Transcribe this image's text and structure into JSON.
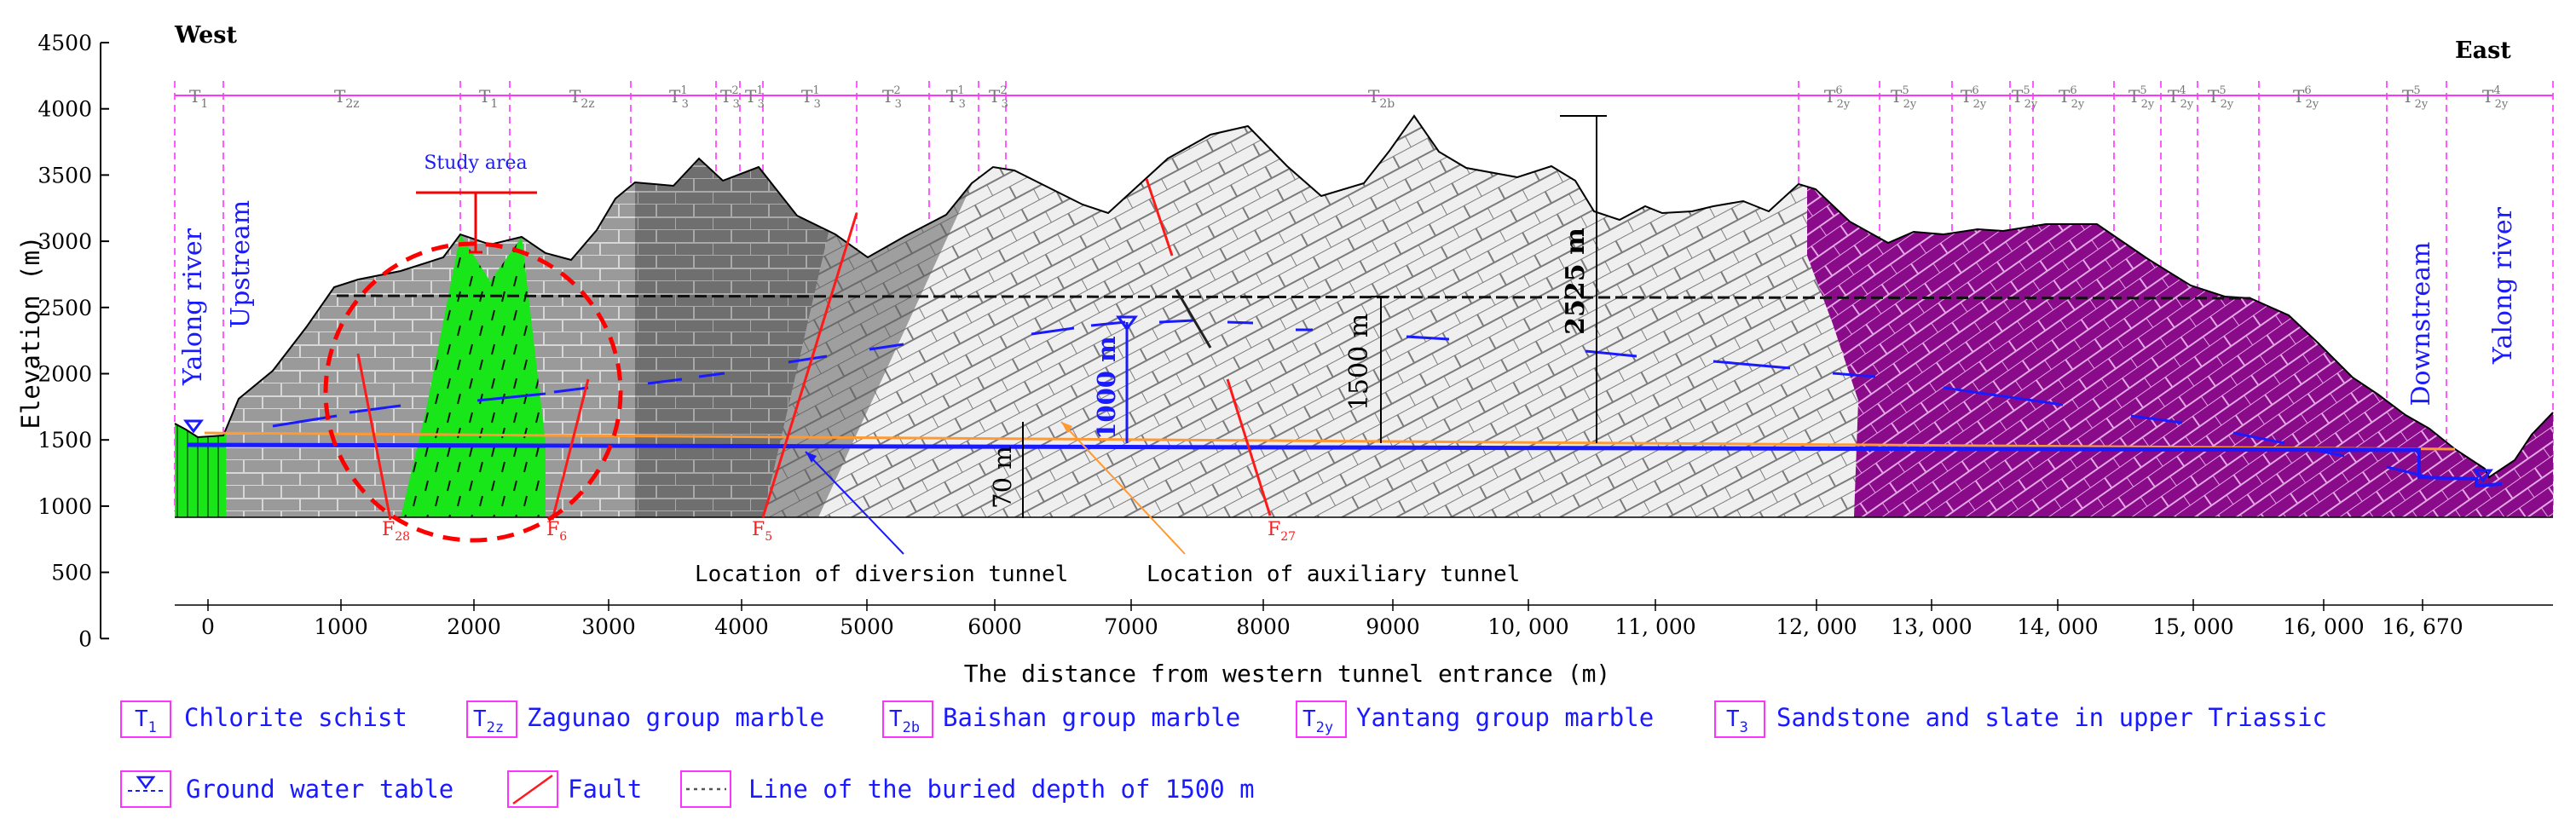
{
  "headings": {
    "west": "West",
    "east": "East"
  },
  "y_axis": {
    "label": "Elevation (m)",
    "ticks": [
      "4500",
      "4000",
      "3500",
      "3000",
      "2500",
      "2000",
      "1500",
      "1000",
      "500",
      "0"
    ]
  },
  "x_axis": {
    "label": "The distance from western tunnel entrance (m)",
    "ticks": [
      "0",
      "1000",
      "2000",
      "3000",
      "4000",
      "5000",
      "6000",
      "7000",
      "8000",
      "9000",
      "10, 000",
      "11, 000",
      "12, 000",
      "13, 000",
      "14, 000",
      "15, 000",
      "16, 000",
      "16, 670"
    ]
  },
  "strata": {
    "t1": "T",
    "t1_sub": "1",
    "t2z": "T",
    "t2z_sub": "2z",
    "t3": "T",
    "t3_sub": "3",
    "t3_sup": [
      "1",
      "2",
      "1",
      "2"
    ],
    "t2b": "T",
    "t2b_sub": "2b",
    "t2y": "T",
    "t2y_sub": "2y",
    "t2y_sup": [
      "6",
      "5",
      "6",
      "5",
      "6",
      "5",
      "4",
      "5",
      "6",
      "5",
      "4"
    ]
  },
  "labels": {
    "study_area": "Study area",
    "yalong_left": "Yalong river",
    "upstream": "Upstream",
    "downstream": "Downstream",
    "yalong_right": "Yalong river",
    "depth_2525": "2525 m",
    "depth_1500": "1500 m",
    "depth_1000": "1000 m",
    "depth_70": "70 m",
    "diversion": "Location of diversion tunnel",
    "auxiliary": "Location of auxiliary tunnel"
  },
  "faults": {
    "f28": "F",
    "f28_sub": "28",
    "f6": "F",
    "f6_sub": "6",
    "f5": "F",
    "f5_sub": "5",
    "f27": "F",
    "f27_sub": "27"
  },
  "legend": {
    "t1_desc": "Chlorite schist",
    "t2z_desc": "Zagunao group marble",
    "t2b_desc": "Baishan group marble",
    "t2y_desc": "Yantang group marble",
    "t3_desc": "Sandstone and slate in upper Triassic",
    "water_desc": "Ground water table",
    "fault_desc": "Fault",
    "line_desc": "Line of the buried depth of 1500 m",
    "t2y_sub_legend": "2y"
  },
  "colors": {
    "t1_green": "#19e619",
    "t2z_gray": "#9a9a9a",
    "t3_darkgray": "#6f6f6f",
    "t2b_white": "#ececec",
    "t2y_purple": "#8a0b8a",
    "water_blue": "#1a1aff",
    "fault_red": "#ff1a1a",
    "tunnel_orange": "#ff9933",
    "magenta_boundary": "#ff33ff"
  }
}
